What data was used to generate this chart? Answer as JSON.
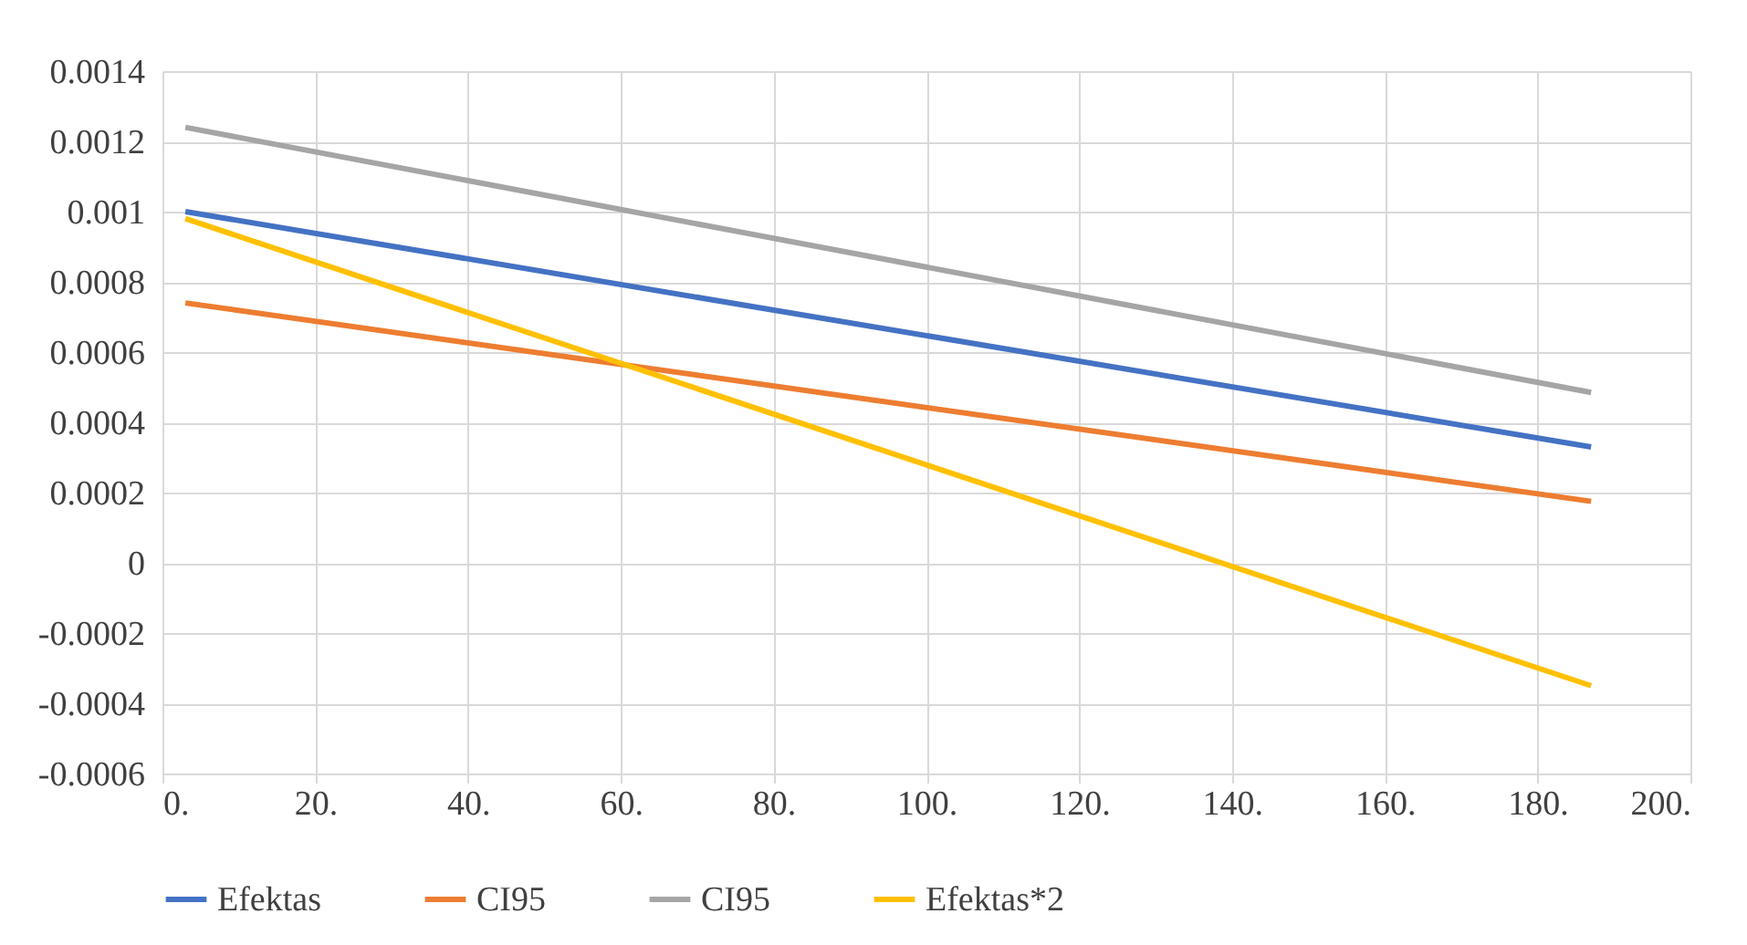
{
  "chart_data": {
    "type": "line",
    "x": [
      3,
      187
    ],
    "series": [
      {
        "name": "Efektas",
        "color": "#4472c4",
        "values": [
          0.001,
          0.00033
        ]
      },
      {
        "name": "CI95",
        "color": "#ed7d31",
        "values": [
          0.00074,
          0.000175
        ]
      },
      {
        "name": "CI95",
        "color": "#a5a5a5",
        "values": [
          0.00124,
          0.000485
        ]
      },
      {
        "name": "Efektas*2",
        "color": "#ffc000",
        "values": [
          0.00098,
          -0.00035
        ]
      }
    ],
    "xlim": [
      0,
      200
    ],
    "xticks": [
      {
        "value": 0,
        "label": "0."
      },
      {
        "value": 20,
        "label": "20."
      },
      {
        "value": 40,
        "label": "40."
      },
      {
        "value": 60,
        "label": "60."
      },
      {
        "value": 80,
        "label": "80."
      },
      {
        "value": 100,
        "label": "100."
      },
      {
        "value": 120,
        "label": "120."
      },
      {
        "value": 140,
        "label": "140."
      },
      {
        "value": 160,
        "label": "160."
      },
      {
        "value": 180,
        "label": "180."
      },
      {
        "value": 200,
        "label": "200."
      }
    ],
    "ylim": [
      -0.0006,
      0.0014
    ],
    "yticks": [
      -0.0006,
      -0.0004,
      -0.0002,
      0,
      0.0002,
      0.0004,
      0.0006,
      0.0008,
      0.001,
      0.0012,
      0.0014
    ],
    "grid": true,
    "legend": "bottom",
    "marker": "none",
    "line_style": "solid"
  }
}
